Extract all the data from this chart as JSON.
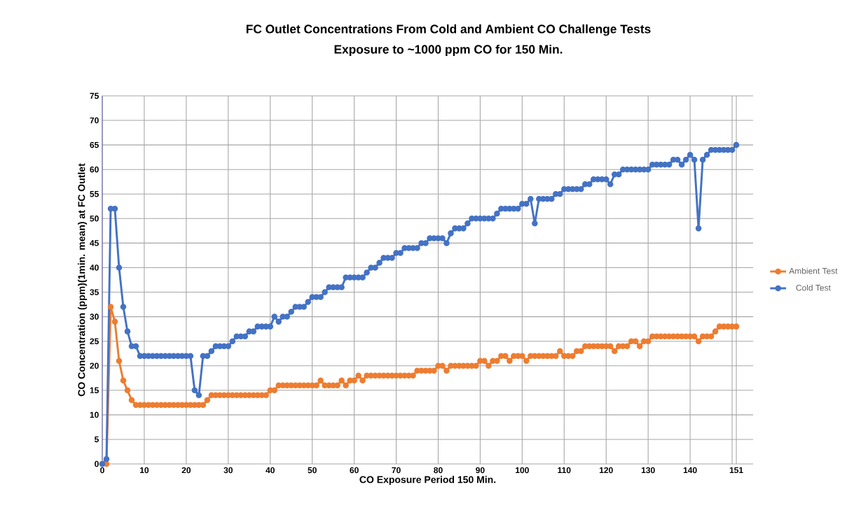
{
  "chart_data": {
    "type": "line",
    "title": "FC Outlet Concentrations From Cold and Ambient CO Challenge Tests",
    "subtitle": "Exposure to ~1000 ppm CO for 150 Min.",
    "xlabel": "CO Exposure Period 150 Min.",
    "ylabel": "CO Concentration (ppm)(1min. mean) at FC Outlet",
    "x": [
      0,
      1,
      2,
      3,
      4,
      5,
      6,
      7,
      8,
      9,
      10,
      11,
      12,
      13,
      14,
      15,
      16,
      17,
      18,
      19,
      20,
      21,
      22,
      23,
      24,
      25,
      26,
      27,
      28,
      29,
      30,
      31,
      32,
      33,
      34,
      35,
      36,
      37,
      38,
      39,
      40,
      41,
      42,
      43,
      44,
      45,
      46,
      47,
      48,
      49,
      50,
      51,
      52,
      53,
      54,
      55,
      56,
      57,
      58,
      59,
      60,
      61,
      62,
      63,
      64,
      65,
      66,
      67,
      68,
      69,
      70,
      71,
      72,
      73,
      74,
      75,
      76,
      77,
      78,
      79,
      80,
      81,
      82,
      83,
      84,
      85,
      86,
      87,
      88,
      89,
      90,
      91,
      92,
      93,
      94,
      95,
      96,
      97,
      98,
      99,
      100,
      101,
      102,
      103,
      104,
      105,
      106,
      107,
      108,
      109,
      110,
      111,
      112,
      113,
      114,
      115,
      116,
      117,
      118,
      119,
      120,
      121,
      122,
      123,
      124,
      125,
      126,
      127,
      128,
      129,
      130,
      131,
      132,
      133,
      134,
      135,
      136,
      137,
      138,
      139,
      140,
      141,
      142,
      143,
      144,
      145,
      146,
      147,
      148,
      149,
      150,
      151
    ],
    "series": [
      {
        "name": "Ambient Test",
        "color": "#ed7d31",
        "values": [
          0,
          0,
          32,
          29,
          21,
          17,
          15,
          13,
          12,
          12,
          12,
          12,
          12,
          12,
          12,
          12,
          12,
          12,
          12,
          12,
          12,
          12,
          12,
          12,
          12,
          13,
          14,
          14,
          14,
          14,
          14,
          14,
          14,
          14,
          14,
          14,
          14,
          14,
          14,
          14,
          15,
          15,
          16,
          16,
          16,
          16,
          16,
          16,
          16,
          16,
          16,
          16,
          17,
          16,
          16,
          16,
          16,
          17,
          16,
          17,
          17,
          18,
          17,
          18,
          18,
          18,
          18,
          18,
          18,
          18,
          18,
          18,
          18,
          18,
          18,
          19,
          19,
          19,
          19,
          19,
          20,
          20,
          19,
          20,
          20,
          20,
          20,
          20,
          20,
          20,
          21,
          21,
          20,
          21,
          21,
          22,
          22,
          21,
          22,
          22,
          22,
          21,
          22,
          22,
          22,
          22,
          22,
          22,
          22,
          23,
          22,
          22,
          22,
          23,
          23,
          24,
          24,
          24,
          24,
          24,
          24,
          24,
          23,
          24,
          24,
          24,
          25,
          25,
          24,
          25,
          25,
          26,
          26,
          26,
          26,
          26,
          26,
          26,
          26,
          26,
          26,
          26,
          25,
          26,
          26,
          26,
          27,
          28,
          28,
          28,
          28,
          28
        ]
      },
      {
        "name": "Cold Test",
        "color": "#4472c4",
        "values": [
          0,
          1,
          52,
          52,
          40,
          32,
          27,
          24,
          24,
          22,
          22,
          22,
          22,
          22,
          22,
          22,
          22,
          22,
          22,
          22,
          22,
          22,
          15,
          14,
          22,
          22,
          23,
          24,
          24,
          24,
          24,
          25,
          26,
          26,
          26,
          27,
          27,
          28,
          28,
          28,
          28,
          30,
          29,
          30,
          30,
          31,
          32,
          32,
          32,
          33,
          34,
          34,
          34,
          35,
          36,
          36,
          36,
          36,
          38,
          38,
          38,
          38,
          38,
          39,
          40,
          40,
          41,
          42,
          42,
          42,
          43,
          43,
          44,
          44,
          44,
          44,
          45,
          45,
          46,
          46,
          46,
          46,
          45,
          47,
          48,
          48,
          48,
          49,
          50,
          50,
          50,
          50,
          50,
          50,
          51,
          52,
          52,
          52,
          52,
          52,
          53,
          53,
          54,
          49,
          54,
          54,
          54,
          54,
          55,
          55,
          56,
          56,
          56,
          56,
          56,
          57,
          57,
          58,
          58,
          58,
          58,
          57,
          59,
          59,
          60,
          60,
          60,
          60,
          60,
          60,
          60,
          61,
          61,
          61,
          61,
          61,
          62,
          62,
          61,
          62,
          63,
          62,
          48,
          62,
          63,
          64,
          64,
          64,
          64,
          64,
          64,
          65
        ]
      }
    ],
    "xlim": [
      0,
      155
    ],
    "ylim": [
      0,
      75
    ],
    "xticks": [
      0,
      10,
      20,
      30,
      40,
      50,
      60,
      70,
      80,
      90,
      100,
      110,
      120,
      130,
      140,
      {
        "value": 150,
        "label": null
      },
      151
    ],
    "yticks": [
      0,
      5,
      10,
      15,
      20,
      25,
      30,
      35,
      40,
      45,
      50,
      55,
      60,
      65,
      70,
      75
    ],
    "grid": true,
    "legend": "right",
    "marker": "circle",
    "line_style": "solid"
  }
}
